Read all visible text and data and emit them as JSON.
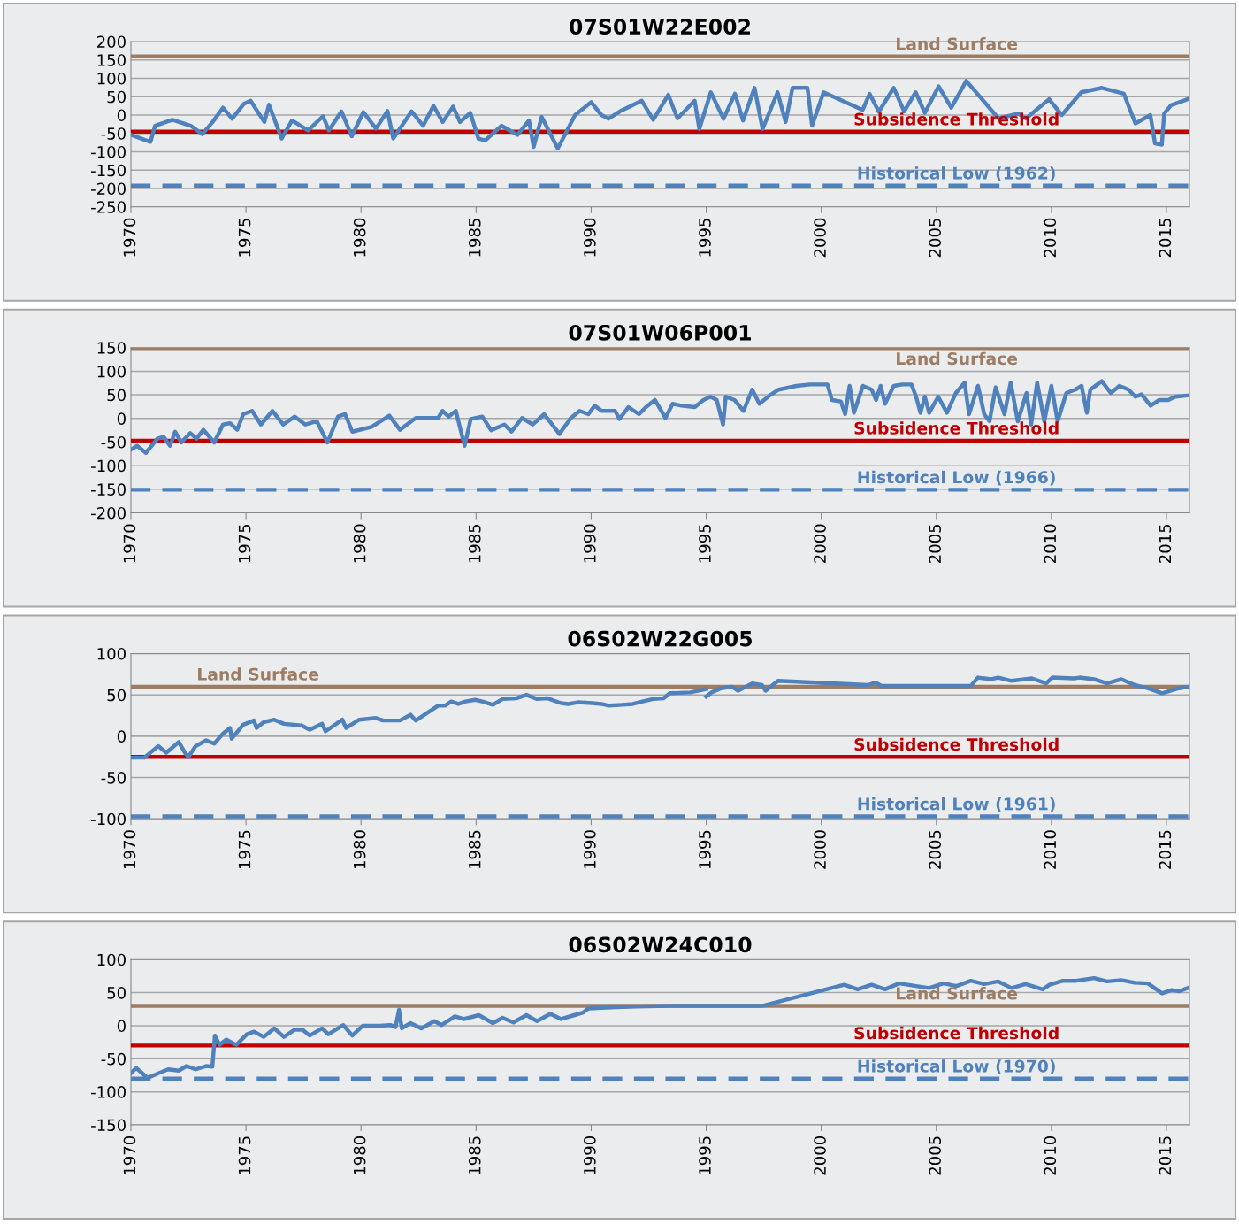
{
  "chart_data": [
    {
      "type": "line",
      "title": "07S01W22E002",
      "xlim": [
        1970,
        2016
      ],
      "xticks": [
        1970,
        1975,
        1980,
        1985,
        1990,
        1995,
        2000,
        2005,
        2010,
        2015
      ],
      "ylim": [
        -250,
        200
      ],
      "yticks": [
        -250,
        -200,
        -150,
        -100,
        -50,
        0,
        50,
        100,
        150,
        200
      ],
      "grid": "y",
      "legend": false,
      "marker": "none",
      "line_style": "solid",
      "series": [
        {
          "color": "#4f81bd",
          "x": [
            1970.0,
            1970.85,
            1971.05,
            1971.8,
            1972.6,
            1973.1,
            1973.55,
            1974.0,
            1974.4,
            1974.9,
            1975.2,
            1975.8,
            1976.0,
            1976.55,
            1977.0,
            1977.7,
            1978.35,
            1978.6,
            1979.15,
            1979.6,
            1980.1,
            1980.65,
            1981.15,
            1981.4,
            1982.2,
            1982.7,
            1983.15,
            1983.55,
            1984.0,
            1984.3,
            1984.75,
            1985.1,
            1985.4,
            1986.1,
            1986.8,
            1987.3,
            1987.5,
            1987.85,
            1988.55,
            1989.3,
            1990.0,
            1990.45,
            1990.75,
            1991.25,
            1992.2,
            1992.7,
            1993.35,
            1993.75,
            1994.5,
            1994.7,
            1995.2,
            1995.75,
            1996.25,
            1996.6,
            1997.1,
            1997.45,
            1998.1,
            1998.45,
            1998.75,
            1999.4,
            1999.6,
            2000.1,
            2001.8,
            2002.1,
            2002.5,
            2003.15,
            2003.6,
            2004.1,
            2004.5,
            2005.1,
            2005.65,
            2006.3,
            2007.7,
            2008.55,
            2008.9,
            2009.9,
            2010.45,
            2011.3,
            2012.2,
            2013.15,
            2013.65,
            2014.3,
            2014.5,
            2014.8,
            2014.9,
            2015.2,
            2016.0
          ],
          "values": [
            -54,
            -73,
            -29,
            -13,
            -29,
            -52,
            -19,
            20,
            -10,
            30,
            39,
            -19,
            28,
            -64,
            -15,
            -42,
            -3,
            -42,
            10,
            -58,
            8,
            -37,
            11,
            -64,
            10,
            -29,
            25,
            -19,
            23,
            -19,
            6,
            -64,
            -69,
            -29,
            -54,
            -15,
            -87,
            -5,
            -91,
            0,
            35,
            0,
            -10,
            10,
            39,
            -13,
            55,
            -9,
            39,
            -38,
            62,
            -10,
            58,
            -15,
            74,
            -38,
            62,
            -19,
            74,
            74,
            -29,
            62,
            14,
            58,
            9,
            74,
            10,
            62,
            6,
            78,
            20,
            93,
            -9,
            4,
            -9,
            43,
            0,
            62,
            74,
            58,
            -23,
            0,
            -77,
            -81,
            4,
            27,
            45
          ]
        }
      ],
      "ref_lines": [
        {
          "axis": "y",
          "value": 160,
          "label": "Land Surface",
          "color": "#9c7c62",
          "line_style": "solid"
        },
        {
          "axis": "y",
          "value": -45,
          "label": "Subsidence Threshold",
          "color": "#c00000",
          "line_style": "solid"
        },
        {
          "axis": "y",
          "value": -192,
          "label": "Historical Low (1962)",
          "color": "#4f81bd",
          "line_style": "dashed"
        }
      ]
    },
    {
      "type": "line",
      "title": "07S01W06P001",
      "xlim": [
        1970,
        2016
      ],
      "xticks": [
        1970,
        1975,
        1980,
        1985,
        1990,
        1995,
        2000,
        2005,
        2010,
        2015
      ],
      "ylim": [
        -200,
        150
      ],
      "yticks": [
        -200,
        -150,
        -100,
        -50,
        0,
        50,
        100,
        150
      ],
      "grid": "y",
      "legend": false,
      "marker": "none",
      "line_style": "solid",
      "series": [
        {
          "color": "#4f81bd",
          "x": [
            1970.0,
            1970.27,
            1970.65,
            1971.15,
            1971.42,
            1971.7,
            1971.92,
            1972.19,
            1972.58,
            1972.85,
            1973.15,
            1973.62,
            1974.0,
            1974.31,
            1974.62,
            1974.88,
            1975.27,
            1975.65,
            1976.15,
            1976.62,
            1977.12,
            1977.58,
            1978.08,
            1978.54,
            1979.0,
            1979.31,
            1979.62,
            1980.46,
            1981.23,
            1981.69,
            1982.38,
            1983.35,
            1983.54,
            1983.81,
            1984.12,
            1984.5,
            1984.77,
            1985.27,
            1985.65,
            1986.23,
            1986.54,
            1987.0,
            1987.46,
            1987.96,
            1988.62,
            1989.12,
            1989.5,
            1989.88,
            1990.15,
            1990.46,
            1991.04,
            1991.23,
            1991.62,
            1992.08,
            1992.38,
            1992.77,
            1993.23,
            1993.54,
            1993.92,
            1994.5,
            1994.88,
            1995.19,
            1995.46,
            1995.73,
            1995.85,
            1996.23,
            1996.62,
            1997.0,
            1997.31,
            1997.77,
            1998.15,
            1998.92,
            1999.5,
            2000.27,
            2000.46,
            2000.85,
            2001.04,
            2001.23,
            2001.42,
            2001.81,
            2002.19,
            2002.38,
            2002.58,
            2002.77,
            2003.15,
            2003.54,
            2003.92,
            2004.12,
            2004.31,
            2004.5,
            2004.69,
            2005.08,
            2005.46,
            2005.85,
            2006.23,
            2006.42,
            2006.81,
            2007.08,
            2007.31,
            2007.58,
            2007.96,
            2008.23,
            2008.54,
            2008.92,
            2009.12,
            2009.38,
            2009.69,
            2010.0,
            2010.27,
            2010.65,
            2011.04,
            2011.31,
            2011.54,
            2011.69,
            2012.19,
            2012.58,
            2012.96,
            2013.35,
            2013.65,
            2013.92,
            2014.31,
            2014.69,
            2015.08,
            2015.38,
            2016.0
          ],
          "values": [
            -66,
            -58,
            -73,
            -43,
            -39,
            -58,
            -28,
            -51,
            -31,
            -43,
            -24,
            -51,
            -13,
            -10,
            -24,
            9,
            16,
            -13,
            16,
            -13,
            4,
            -13,
            -6,
            -51,
            4,
            9,
            -28,
            -18,
            6,
            -24,
            1,
            1,
            16,
            4,
            16,
            -58,
            -1,
            4,
            -25,
            -13,
            -28,
            1,
            -13,
            9,
            -33,
            1,
            16,
            9,
            27,
            16,
            16,
            -1,
            24,
            9,
            24,
            39,
            1,
            31,
            27,
            24,
            39,
            46,
            39,
            -13,
            46,
            39,
            16,
            61,
            31,
            49,
            61,
            69,
            72,
            72,
            39,
            36,
            9,
            69,
            12,
            69,
            61,
            39,
            69,
            31,
            69,
            72,
            72,
            46,
            12,
            46,
            12,
            46,
            12,
            54,
            76,
            9,
            69,
            9,
            -6,
            66,
            9,
            76,
            -6,
            54,
            -13,
            76,
            -6,
            69,
            -6,
            54,
            61,
            69,
            12,
            61,
            79,
            54,
            69,
            61,
            46,
            51,
            27,
            39,
            39,
            46,
            49
          ]
        }
      ],
      "ref_lines": [
        {
          "axis": "y",
          "value": 147,
          "label": "Land Surface",
          "color": "#9c7c62",
          "line_style": "solid"
        },
        {
          "axis": "y",
          "value": -47,
          "label": "Subsidence Threshold",
          "color": "#c00000",
          "line_style": "solid"
        },
        {
          "axis": "y",
          "value": -151,
          "label": "Historical Low (1966)",
          "color": "#4f81bd",
          "line_style": "dashed"
        }
      ]
    },
    {
      "type": "line",
      "title": "06S02W22G005",
      "xlim": [
        1970,
        2016
      ],
      "xticks": [
        1970,
        1975,
        1980,
        1985,
        1990,
        1995,
        2000,
        2005,
        2010,
        2015
      ],
      "ylim": [
        -100,
        100
      ],
      "yticks": [
        -100,
        -50,
        0,
        50,
        100
      ],
      "grid": "y",
      "legend": false,
      "marker": "none",
      "line_style": "solid",
      "series": [
        {
          "color": "#4f81bd",
          "x": [
            1970.0,
            1970.58,
            1971.19,
            1971.54,
            1972.08,
            1972.35,
            1972.5,
            1972.81,
            1973.27,
            1973.62,
            1974.0,
            1974.31,
            1974.38,
            1974.88,
            1975.35,
            1975.46,
            1975.77,
            1976.23,
            1976.65,
            1977.42,
            1977.77,
            1978.31,
            1978.46,
            1979.19,
            1979.35,
            1979.92,
            1980.65,
            1980.96,
            1981.69,
            1982.15,
            1982.38,
            1983.35,
            1983.65,
            1983.92,
            1984.23,
            1984.54,
            1984.96,
            1985.27,
            1985.73,
            1986.15,
            1986.77,
            1987.19,
            1987.65,
            1988.08,
            1988.69,
            1989.0,
            1989.42,
            1990.04,
            1990.46,
            1990.77,
            1991.35,
            1991.81,
            1992.23,
            1992.69,
            1993.15,
            1993.42,
            1994.31,
            1995.0
          ],
          "values": [
            -26,
            -26,
            -12,
            -20,
            -7,
            -20,
            -25,
            -12,
            -5,
            -9,
            3,
            10,
            -3,
            14,
            19,
            10,
            17,
            20,
            15,
            13,
            8,
            15,
            6,
            20,
            10,
            20,
            22,
            19,
            19,
            26,
            19,
            37,
            37,
            42,
            39,
            42,
            44,
            42,
            38,
            45,
            46,
            50,
            45,
            46,
            40,
            39,
            41,
            40,
            39,
            37,
            38,
            39,
            42,
            45,
            46,
            52,
            53,
            57
          ]
        },
        {
          "color": "#4f81bd",
          "x": [
            1995.0,
            1995.23,
            1995.65,
            1996.12,
            1996.38,
            1997.0,
            1997.42,
            1997.58,
            1998.12,
            2002.04,
            2002.35,
            2002.62,
            2006.5,
            2006.81,
            2007.08,
            2007.38,
            2007.69,
            2008.27,
            2009.15,
            2009.77,
            2010.04,
            2010.96,
            2011.23,
            2011.85,
            2012.42,
            2013.04,
            2013.62,
            2014.19,
            2014.81,
            2015.54,
            2016.0
          ],
          "values": [
            48,
            53,
            58,
            60,
            55,
            64,
            62,
            55,
            67,
            62,
            65,
            61,
            61,
            71,
            70,
            69,
            71,
            67,
            70,
            64,
            71,
            70,
            71,
            69,
            64,
            69,
            62,
            58,
            52,
            58,
            60
          ]
        }
      ],
      "ref_lines": [
        {
          "axis": "y",
          "value": 60,
          "label": "Land Surface",
          "color": "#9c7c62",
          "line_style": "solid"
        },
        {
          "axis": "y",
          "value": -25,
          "label": "Subsidence Threshold",
          "color": "#c00000",
          "line_style": "solid"
        },
        {
          "axis": "y",
          "value": -97,
          "label": "Historical Low (1961)",
          "color": "#4f81bd",
          "line_style": "dashed"
        }
      ]
    },
    {
      "type": "line",
      "title": "06S02W24C010",
      "xlim": [
        1970,
        2016
      ],
      "xticks": [
        1970,
        1975,
        1980,
        1985,
        1990,
        1995,
        2000,
        2005,
        2010,
        2015
      ],
      "ylim": [
        -150,
        100
      ],
      "yticks": [
        -150,
        -100,
        -50,
        0,
        50,
        100
      ],
      "grid": "y",
      "legend": false,
      "marker": "none",
      "line_style": "solid",
      "series": [
        {
          "color": "#4f81bd",
          "x": [
            1970.0,
            1970.23,
            1970.73,
            1971.19,
            1971.62,
            1972.08,
            1972.42,
            1972.81,
            1973.27,
            1973.54,
            1973.65,
            1973.85,
            1974.15,
            1974.58,
            1975.04,
            1975.35,
            1975.77,
            1976.23,
            1976.65,
            1977.12,
            1977.46,
            1977.77,
            1978.31,
            1978.58,
            1979.23,
            1979.62,
            1980.08,
            1980.81,
            1981.27,
            1981.5,
            1981.65,
            1981.77,
            1982.15,
            1982.62,
            1983.19,
            1983.5,
            1984.08,
            1984.46,
            1985.12,
            1985.73,
            1986.15,
            1986.62,
            1987.19,
            1987.65,
            1988.23,
            1988.69,
            1989.27,
            1989.65,
            1989.88,
            1990.46,
            1991.08,
            1991.96,
            1993.42,
            1997.42,
            2001.0,
            2001.58,
            2002.19,
            2002.77,
            2003.38,
            2004.12,
            2004.69,
            2005.31,
            2005.88,
            2006.5,
            2007.08,
            2007.69,
            2008.27,
            2008.88,
            2009.62,
            2009.92,
            2010.5,
            2011.08,
            2011.85,
            2012.42,
            2013.04,
            2013.62,
            2014.19,
            2014.81,
            2015.23,
            2015.54,
            2016.0
          ],
          "values": [
            -72,
            -64,
            -79,
            -72,
            -66,
            -68,
            -61,
            -66,
            -61,
            -62,
            -15,
            -29,
            -21,
            -29,
            -13,
            -9,
            -17,
            -4,
            -17,
            -6,
            -6,
            -15,
            -4,
            -13,
            1,
            -15,
            0,
            0,
            1,
            -2,
            24,
            -4,
            4,
            -4,
            7,
            1,
            14,
            10,
            16,
            4,
            12,
            5,
            16,
            7,
            18,
            10,
            16,
            20,
            26,
            27,
            28,
            29,
            30,
            30,
            62,
            55,
            62,
            55,
            64,
            60,
            57,
            64,
            60,
            68,
            63,
            67,
            57,
            63,
            55,
            62,
            68,
            68,
            72,
            67,
            69,
            65,
            64,
            49,
            54,
            52,
            58
          ]
        }
      ],
      "ref_lines": [
        {
          "axis": "y",
          "value": 30,
          "label": "Land Surface",
          "color": "#9c7c62",
          "line_style": "solid"
        },
        {
          "axis": "y",
          "value": -30,
          "label": "Subsidence Threshold",
          "color": "#c00000",
          "line_style": "solid"
        },
        {
          "axis": "y",
          "value": -80,
          "label": "Historical Low (1970)",
          "color": "#4f81bd",
          "line_style": "dashed"
        }
      ]
    }
  ]
}
